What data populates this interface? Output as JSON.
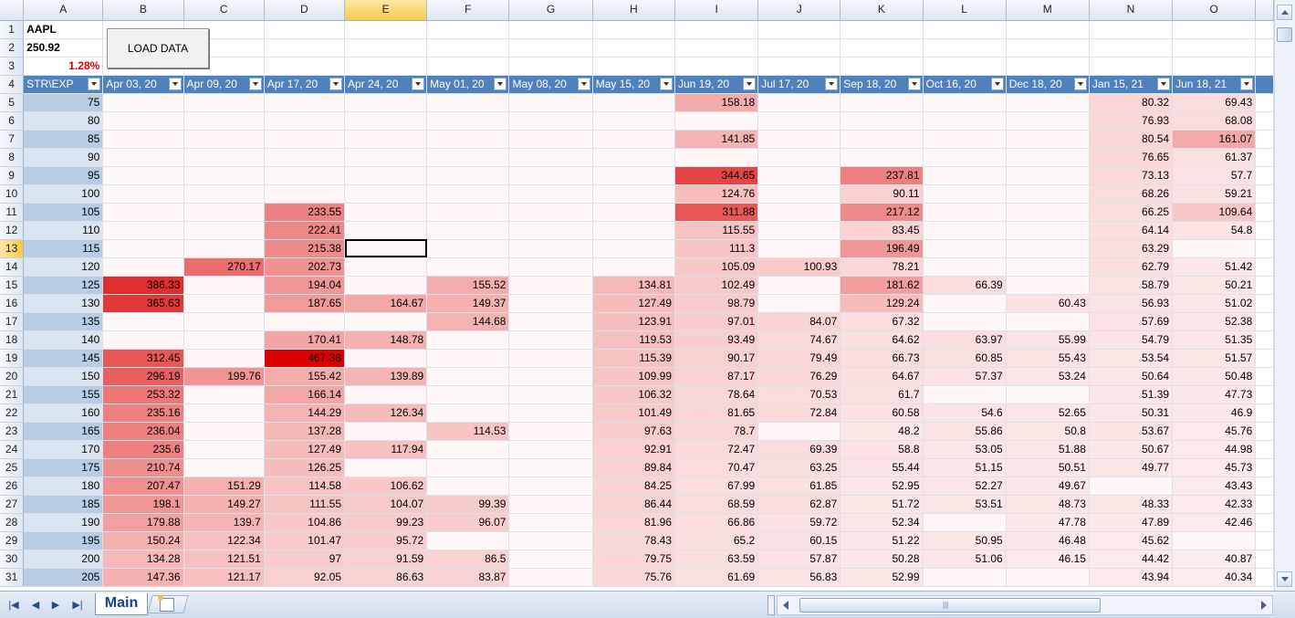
{
  "workbook": {
    "ticker": "AAPL",
    "price": "250.92",
    "change": "1.28%",
    "load_button": "LOAD DATA",
    "sheet_tab": "Main",
    "active_cell": "E13"
  },
  "columns": [
    "",
    "A",
    "B",
    "C",
    "D",
    "E",
    "F",
    "G",
    "H",
    "I",
    "J",
    "K",
    "L",
    "M",
    "N",
    "O"
  ],
  "headers": [
    "STR\\EXP",
    "Apr 03, 20",
    "Apr 09, 20",
    "Apr 17, 20",
    "Apr 24, 20",
    "May 01, 20",
    "May 08, 20",
    "May 15, 20",
    "Jun 19, 20",
    "Jul 17, 20",
    "Sep 18, 20",
    "Oct 16, 20",
    "Dec 18, 20",
    "Jan 15, 21",
    "Jun 18, 21"
  ],
  "rows": [
    {
      "r": "5",
      "strike": "75",
      "v": [
        "",
        "",
        "",
        "",
        "",
        "",
        "",
        "158.18",
        "",
        "",
        "",
        "",
        "80.32",
        "69.43"
      ]
    },
    {
      "r": "6",
      "strike": "80",
      "v": [
        "",
        "",
        "",
        "",
        "",
        "",
        "",
        "",
        "",
        "",
        "",
        "",
        "76.93",
        "68.08"
      ]
    },
    {
      "r": "7",
      "strike": "85",
      "v": [
        "",
        "",
        "",
        "",
        "",
        "",
        "",
        "141.85",
        "",
        "",
        "",
        "",
        "80.54",
        "161.07"
      ]
    },
    {
      "r": "8",
      "strike": "90",
      "v": [
        "",
        "",
        "",
        "",
        "",
        "",
        "",
        "",
        "",
        "",
        "",
        "",
        "76.65",
        "61.37"
      ]
    },
    {
      "r": "9",
      "strike": "95",
      "v": [
        "",
        "",
        "",
        "",
        "",
        "",
        "",
        "344.65",
        "",
        "237.81",
        "",
        "",
        "73.13",
        "57.7"
      ]
    },
    {
      "r": "10",
      "strike": "100",
      "v": [
        "",
        "",
        "",
        "",
        "",
        "",
        "",
        "124.76",
        "",
        "90.11",
        "",
        "",
        "68.26",
        "59.21"
      ]
    },
    {
      "r": "11",
      "strike": "105",
      "v": [
        "",
        "",
        "233.55",
        "",
        "",
        "",
        "",
        "311.88",
        "",
        "217.12",
        "",
        "",
        "66.25",
        "109.64"
      ]
    },
    {
      "r": "12",
      "strike": "110",
      "v": [
        "",
        "",
        "222.41",
        "",
        "",
        "",
        "",
        "115.55",
        "",
        "83.45",
        "",
        "",
        "64.14",
        "54.8"
      ]
    },
    {
      "r": "13",
      "strike": "115",
      "v": [
        "",
        "",
        "215.38",
        "",
        "",
        "",
        "",
        "111.3",
        "",
        "196.49",
        "",
        "",
        "63.29",
        ""
      ]
    },
    {
      "r": "14",
      "strike": "120",
      "v": [
        "",
        "270.17",
        "202.73",
        "",
        "",
        "",
        "",
        "105.09",
        "100.93",
        "78.21",
        "",
        "",
        "62.79",
        "51.42"
      ]
    },
    {
      "r": "15",
      "strike": "125",
      "v": [
        "386.33",
        "",
        "194.04",
        "",
        "155.52",
        "",
        "134.81",
        "102.49",
        "",
        "181.62",
        "66.39",
        "",
        "58.79",
        "50.21"
      ]
    },
    {
      "r": "16",
      "strike": "130",
      "v": [
        "365.63",
        "",
        "187.65",
        "164.67",
        "149.37",
        "",
        "127.49",
        "98.79",
        "",
        "129.24",
        "",
        "60.43",
        "56.93",
        "51.02"
      ]
    },
    {
      "r": "17",
      "strike": "135",
      "v": [
        "",
        "",
        "",
        "",
        "144.68",
        "",
        "123.91",
        "97.01",
        "84.07",
        "67.32",
        "",
        "",
        "57.69",
        "52.38"
      ]
    },
    {
      "r": "18",
      "strike": "140",
      "v": [
        "",
        "",
        "170.41",
        "148.78",
        "",
        "",
        "119.53",
        "93.49",
        "74.67",
        "64.62",
        "63.97",
        "55.99",
        "54.79",
        "51.35"
      ]
    },
    {
      "r": "19",
      "strike": "145",
      "v": [
        "312.45",
        "",
        "467.38",
        "",
        "",
        "",
        "115.39",
        "90.17",
        "79.49",
        "66.73",
        "60.85",
        "55.43",
        "53.54",
        "51.57"
      ]
    },
    {
      "r": "20",
      "strike": "150",
      "v": [
        "296.19",
        "199.76",
        "155.42",
        "139.89",
        "",
        "",
        "109.99",
        "87.17",
        "76.29",
        "64.67",
        "57.37",
        "53.24",
        "50.64",
        "50.48"
      ]
    },
    {
      "r": "21",
      "strike": "155",
      "v": [
        "253.32",
        "",
        "166.14",
        "",
        "",
        "",
        "106.32",
        "78.64",
        "70.53",
        "61.7",
        "",
        "",
        "51.39",
        "47.73"
      ]
    },
    {
      "r": "22",
      "strike": "160",
      "v": [
        "235.16",
        "",
        "144.29",
        "126.34",
        "",
        "",
        "101.49",
        "81.65",
        "72.84",
        "60.58",
        "54.6",
        "52.65",
        "50.31",
        "46.9"
      ]
    },
    {
      "r": "23",
      "strike": "165",
      "v": [
        "236.04",
        "",
        "137.28",
        "",
        "114.53",
        "",
        "97.63",
        "78.7",
        "",
        "48.2",
        "55.86",
        "50.8",
        "53.67",
        "45.76"
      ]
    },
    {
      "r": "24",
      "strike": "170",
      "v": [
        "235.6",
        "",
        "127.49",
        "117.94",
        "",
        "",
        "92.91",
        "72.47",
        "69.39",
        "58.8",
        "53.05",
        "51.88",
        "50.67",
        "44.98"
      ]
    },
    {
      "r": "25",
      "strike": "175",
      "v": [
        "210.74",
        "",
        "126.25",
        "",
        "",
        "",
        "89.84",
        "70.47",
        "63.25",
        "55.44",
        "51.15",
        "50.51",
        "49.77",
        "45.73"
      ]
    },
    {
      "r": "26",
      "strike": "180",
      "v": [
        "207.47",
        "151.29",
        "114.58",
        "106.62",
        "",
        "",
        "84.25",
        "67.99",
        "61.85",
        "52.95",
        "52.27",
        "49.67",
        "",
        "43.43"
      ]
    },
    {
      "r": "27",
      "strike": "185",
      "v": [
        "198.1",
        "149.27",
        "111.55",
        "104.07",
        "99.39",
        "",
        "86.44",
        "68.59",
        "62.87",
        "51.72",
        "53.51",
        "48.73",
        "48.33",
        "42.33"
      ]
    },
    {
      "r": "28",
      "strike": "190",
      "v": [
        "179.88",
        "139.7",
        "104.86",
        "99.23",
        "96.07",
        "",
        "81.96",
        "66.86",
        "59.72",
        "52.34",
        "",
        "47.78",
        "47.89",
        "42.46"
      ]
    },
    {
      "r": "29",
      "strike": "195",
      "v": [
        "150.24",
        "122.34",
        "101.47",
        "95.72",
        "",
        "",
        "78.43",
        "65.2",
        "60.15",
        "51.22",
        "50.95",
        "46.48",
        "45.62",
        ""
      ]
    },
    {
      "r": "30",
      "strike": "200",
      "v": [
        "134.28",
        "121.51",
        "97",
        "91.59",
        "86.5",
        "",
        "79.75",
        "63.59",
        "57.87",
        "50.28",
        "51.06",
        "46.15",
        "44.42",
        "40.87"
      ]
    },
    {
      "r": "31",
      "strike": "205",
      "v": [
        "147.36",
        "121.17",
        "92.05",
        "86.63",
        "83.87",
        "",
        "75.76",
        "61.69",
        "56.83",
        "52.99",
        "",
        "",
        "43.94",
        "40.34"
      ]
    }
  ]
}
